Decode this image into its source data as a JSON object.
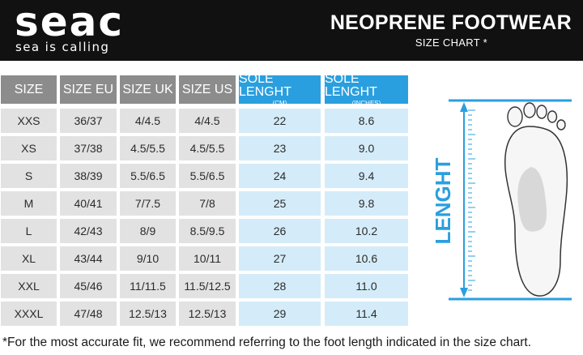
{
  "brand": {
    "name": "seac",
    "tagline": "sea is calling"
  },
  "header": {
    "title": "NEOPRENE FOOTWEAR",
    "subtitle": "SIZE CHART *"
  },
  "table": {
    "columns": [
      {
        "label": "SIZE",
        "unit": "",
        "style": "gray"
      },
      {
        "label": "SIZE EU",
        "unit": "",
        "style": "gray"
      },
      {
        "label": "SIZE UK",
        "unit": "",
        "style": "gray"
      },
      {
        "label": "SIZE US",
        "unit": "",
        "style": "gray"
      },
      {
        "label": "SOLE LENGHT",
        "unit": "(CM)",
        "style": "blue"
      },
      {
        "label": "SOLE LENGHT",
        "unit": "(INCHES)",
        "style": "blue"
      }
    ],
    "rows": [
      [
        "XXS",
        "36/37",
        "4/4.5",
        "4/4.5",
        "22",
        "8.6"
      ],
      [
        "XS",
        "37/38",
        "4.5/5.5",
        "4.5/5.5",
        "23",
        "9.0"
      ],
      [
        "S",
        "38/39",
        "5.5/6.5",
        "5.5/6.5",
        "24",
        "9.4"
      ],
      [
        "M",
        "40/41",
        "7/7.5",
        "7/8",
        "25",
        "9.8"
      ],
      [
        "L",
        "42/43",
        "8/9",
        "8.5/9.5",
        "26",
        "10.2"
      ],
      [
        "XL",
        "43/44",
        "9/10",
        "10/11",
        "27",
        "10.6"
      ],
      [
        "XXL",
        "45/46",
        "11/11.5",
        "11.5/12.5",
        "28",
        "11.0"
      ],
      [
        "XXXL",
        "47/48",
        "12.5/13",
        "12.5/13",
        "29",
        "11.4"
      ]
    ]
  },
  "figure": {
    "label": "LENGHT",
    "accent_color": "#2a9fdf",
    "icon": "foot-sole-icon"
  },
  "footnote": "*For the most accurate fit, we recommend referring to the foot length indicated in the size chart.",
  "colors": {
    "header_bg": "#111111",
    "gray_header": "#8c8c8c",
    "blue_header": "#2a9fdf",
    "gray_cell": "#e2e2e2",
    "blue_cell": "#d4ecf9"
  }
}
